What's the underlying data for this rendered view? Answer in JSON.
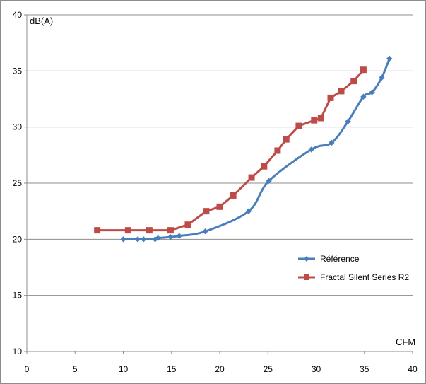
{
  "chart_data": {
    "type": "line",
    "title": "",
    "xlabel": "CFM",
    "ylabel": "dB(A)",
    "xlim": [
      0,
      40
    ],
    "ylim": [
      10,
      40
    ],
    "xticks": [
      0,
      5,
      10,
      15,
      20,
      25,
      30,
      35,
      40
    ],
    "yticks": [
      10,
      15,
      20,
      25,
      30,
      35,
      40
    ],
    "grid": "horizontal",
    "legend_position": "right",
    "series": [
      {
        "name": "Référence",
        "color": "#4a7ebb",
        "marker": "diamond",
        "smooth": true,
        "points": [
          [
            10.0,
            20.0
          ],
          [
            11.5,
            20.0
          ],
          [
            12.1,
            20.0
          ],
          [
            13.3,
            20.0
          ],
          [
            13.6,
            20.1
          ],
          [
            14.9,
            20.2
          ],
          [
            15.8,
            20.3
          ],
          [
            18.5,
            20.7
          ],
          [
            23.0,
            22.5
          ],
          [
            25.1,
            25.2
          ],
          [
            29.5,
            28.0
          ],
          [
            31.6,
            28.6
          ],
          [
            33.3,
            30.5
          ],
          [
            34.9,
            32.7
          ],
          [
            35.8,
            33.1
          ],
          [
            36.8,
            34.4
          ],
          [
            37.6,
            36.1
          ]
        ]
      },
      {
        "name": "Fractal Silent Series R2",
        "color": "#be4b48",
        "marker": "square",
        "smooth": false,
        "points": [
          [
            7.3,
            20.8
          ],
          [
            10.5,
            20.8
          ],
          [
            12.7,
            20.8
          ],
          [
            14.9,
            20.8
          ],
          [
            16.7,
            21.3
          ],
          [
            18.6,
            22.5
          ],
          [
            20.0,
            22.9
          ],
          [
            21.4,
            23.9
          ],
          [
            23.3,
            25.5
          ],
          [
            24.6,
            26.5
          ],
          [
            26.0,
            27.9
          ],
          [
            26.9,
            28.9
          ],
          [
            28.2,
            30.1
          ],
          [
            29.8,
            30.6
          ],
          [
            30.5,
            30.8
          ],
          [
            31.5,
            32.6
          ],
          [
            32.6,
            33.2
          ],
          [
            33.9,
            34.1
          ],
          [
            34.9,
            35.1
          ]
        ]
      }
    ]
  }
}
